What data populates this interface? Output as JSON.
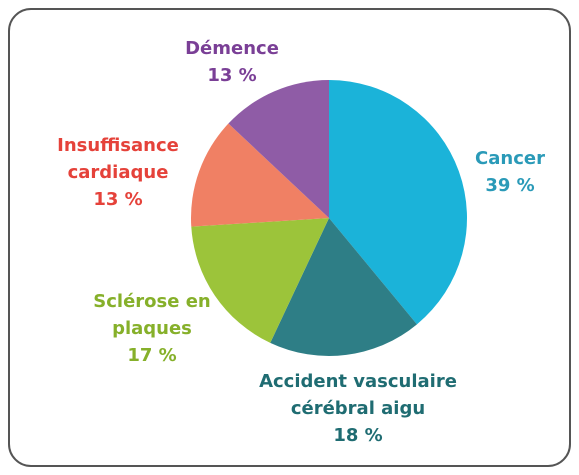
{
  "chart_data": {
    "type": "pie",
    "categories": [
      "Cancer",
      "Accident vasculaire cérébral aigu",
      "Sclérose en plaques",
      "Insuffisance cardiaque",
      "Démence"
    ],
    "values": [
      39,
      18,
      17,
      13,
      13
    ],
    "value_labels": [
      "39 %",
      "18 %",
      "17 %",
      "13 %",
      "13 %"
    ],
    "colors": [
      "#1bb3d9",
      "#2e7e86",
      "#9cc43a",
      "#f08064",
      "#8f5ca6"
    ],
    "label_colors": [
      "#2a9ab8",
      "#1f6c72",
      "#86b02a",
      "#e5423a",
      "#7a3f96"
    ]
  }
}
